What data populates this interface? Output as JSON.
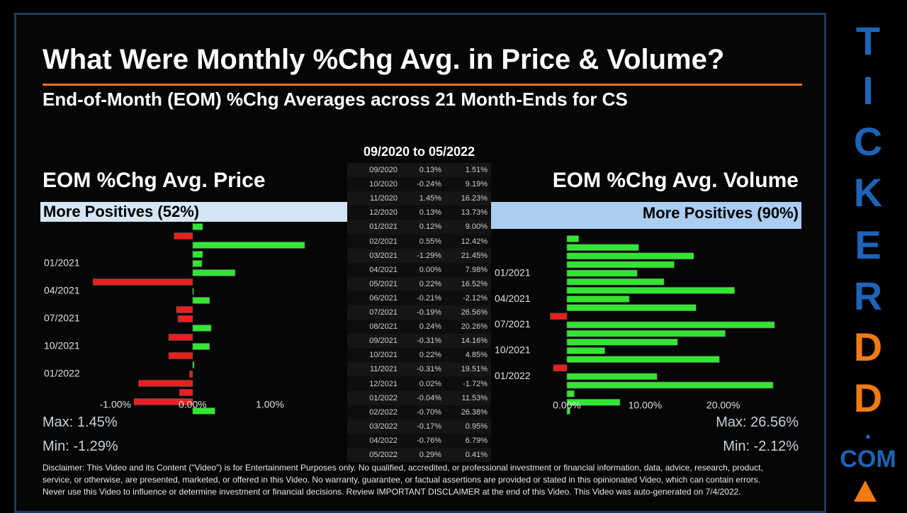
{
  "header": {
    "title": "What Were Monthly %Chg Avg. in Price & Volume?",
    "subtitle": "End-of-Month (EOM) %Chg Averages across 21 Month-Ends for CS"
  },
  "table": {
    "title": "09/2020 to 05/2022",
    "rows": [
      [
        "09/2020",
        "0.13%",
        "1.51%"
      ],
      [
        "10/2020",
        "-0.24%",
        "9.19%"
      ],
      [
        "11/2020",
        "1.45%",
        "16.23%"
      ],
      [
        "12/2020",
        "0.13%",
        "13.73%"
      ],
      [
        "01/2021",
        "0.12%",
        "9.00%"
      ],
      [
        "02/2021",
        "0.55%",
        "12.42%"
      ],
      [
        "03/2021",
        "-1.29%",
        "21.45%"
      ],
      [
        "04/2021",
        "0.00%",
        "7.98%"
      ],
      [
        "05/2021",
        "0.22%",
        "16.52%"
      ],
      [
        "06/2021",
        "-0.21%",
        "-2.12%"
      ],
      [
        "07/2021",
        "-0.19%",
        "26.56%"
      ],
      [
        "08/2021",
        "0.24%",
        "20.26%"
      ],
      [
        "09/2021",
        "-0.31%",
        "14.16%"
      ],
      [
        "10/2021",
        "0.22%",
        "4.85%"
      ],
      [
        "11/2021",
        "-0.31%",
        "19.51%"
      ],
      [
        "12/2021",
        "0.02%",
        "-1.72%"
      ],
      [
        "01/2022",
        "-0.04%",
        "11.53%"
      ],
      [
        "02/2022",
        "-0.70%",
        "26.38%"
      ],
      [
        "03/2022",
        "-0.17%",
        "0.95%"
      ],
      [
        "04/2022",
        "-0.76%",
        "6.79%"
      ],
      [
        "05/2022",
        "0.29%",
        "0.41%"
      ]
    ]
  },
  "chart_data": [
    {
      "type": "bar",
      "orientation": "horizontal",
      "title": "EOM %Chg Avg. Price",
      "subtitle": "More Positives (52%)",
      "categories": [
        null,
        null,
        null,
        null,
        "01/2021",
        null,
        null,
        "04/2021",
        null,
        null,
        "07/2021",
        null,
        null,
        "10/2021",
        null,
        null,
        "01/2022",
        null,
        null,
        null,
        null
      ],
      "values": [
        0.13,
        -0.24,
        1.45,
        0.13,
        0.12,
        0.55,
        -1.29,
        0.0,
        0.22,
        -0.21,
        -0.19,
        0.24,
        -0.31,
        0.22,
        -0.31,
        0.02,
        -0.04,
        -0.7,
        -0.17,
        -0.76,
        0.29
      ],
      "color": "#33e633",
      "negative_color": "#e82020",
      "xlim": [
        -1.97,
        2.0
      ],
      "xticks": [
        {
          "value": -1,
          "label": "-1.00%"
        },
        {
          "value": 0,
          "label": "0.00%"
        },
        {
          "value": 1,
          "label": "1.00%"
        }
      ],
      "grid": false,
      "annotations": [
        "Max: 1.45%",
        "Min: -1.29%"
      ]
    },
    {
      "type": "bar",
      "orientation": "horizontal",
      "title": "EOM %Chg Avg. Volume",
      "subtitle": "More Positives (90%)",
      "categories": [
        null,
        null,
        null,
        null,
        "01/2021",
        null,
        null,
        "04/2021",
        null,
        null,
        "07/2021",
        null,
        null,
        "10/2021",
        null,
        null,
        "01/2022",
        null,
        null,
        null,
        null
      ],
      "values": [
        1.51,
        9.19,
        16.23,
        13.73,
        9.0,
        12.42,
        21.45,
        7.98,
        16.52,
        -2.12,
        26.56,
        20.26,
        14.16,
        4.85,
        19.51,
        -1.72,
        11.53,
        26.38,
        0.95,
        6.79,
        0.41
      ],
      "color": "#33e633",
      "negative_color": "#e82020",
      "xlim": [
        -9.7,
        30
      ],
      "xticks": [
        {
          "value": 0,
          "label": "0.00%"
        },
        {
          "value": 10,
          "label": "10.00%"
        },
        {
          "value": 20,
          "label": "20.00%"
        }
      ],
      "grid": false,
      "annotations": [
        "Max: 26.56%",
        "Min: -2.12%"
      ]
    }
  ],
  "disclaimer": [
    "Disclaimer: This Video and its Content (\"Video\") is for Entertainment Purposes only. No qualified, accredited, or professional investment or financial information, data, advice, research, product,",
    "service, or otherwise, are presented, marketed, or offered in this Video. No warranty, guarantee, or factual assertions are provided or stated in this opinionated Video, which can contain errors.",
    "Never use this Video to influence or determine investment or financial decisions. Review IMPORTANT DISCLAIMER at the end of this Video. This Video was auto-generated on 7/4/2022."
  ],
  "brand": {
    "letters": [
      "T",
      "I",
      "C",
      "K",
      "E",
      "R",
      "D",
      "D",
      ".",
      "COM"
    ]
  }
}
